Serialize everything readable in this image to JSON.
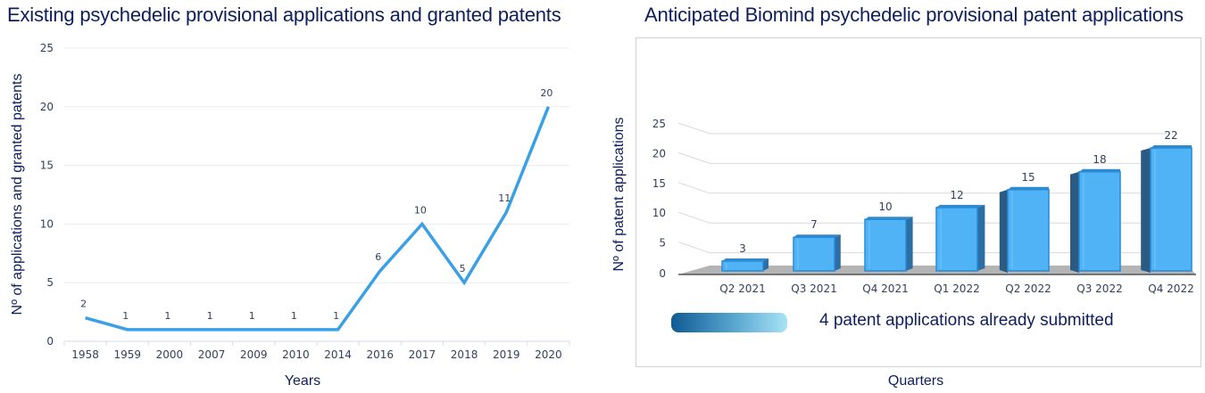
{
  "chart_data": [
    {
      "type": "line",
      "title": "Existing psychedelic provisional applications and granted patents",
      "xlabel": "Years",
      "ylabel": "Nº of applications and granted patents",
      "categories": [
        "1958",
        "1959",
        "2000",
        "2007",
        "2009",
        "2010",
        "2014",
        "2016",
        "2017",
        "2018",
        "2019",
        "2020"
      ],
      "values": [
        2,
        1,
        1,
        1,
        1,
        1,
        1,
        6,
        10,
        5,
        11,
        20
      ],
      "data_labels": [
        "2",
        "1",
        "1",
        "1",
        "1",
        "1",
        "1",
        "6",
        "10",
        "5",
        "11",
        "20"
      ],
      "yticks": [
        "0",
        "5",
        "10",
        "15",
        "20",
        "25"
      ],
      "ylim": [
        0,
        25
      ],
      "grid": true,
      "line_color": "#3aa0e6"
    },
    {
      "type": "bar",
      "style": "3d",
      "title": "Anticipated Biomind psychedelic provisional patent applications",
      "xlabel": "Quarters",
      "ylabel": "Nº of patent applications",
      "categories": [
        "Q2 2021",
        "Q3 2021",
        "Q4 2021",
        "Q1 2022",
        "Q2 2022",
        "Q3 2022",
        "Q4 2022"
      ],
      "values": [
        3,
        7,
        10,
        12,
        15,
        18,
        22
      ],
      "data_labels": [
        "3",
        "7",
        "10",
        "12",
        "15",
        "18",
        "22"
      ],
      "yticks": [
        "0",
        "5",
        "10",
        "15",
        "20",
        "25"
      ],
      "ylim": [
        0,
        25
      ],
      "grid": true,
      "bar_color": "#4fb3f5",
      "legend": {
        "text": "4 patent applications already submitted",
        "placement": "bottom"
      }
    }
  ]
}
